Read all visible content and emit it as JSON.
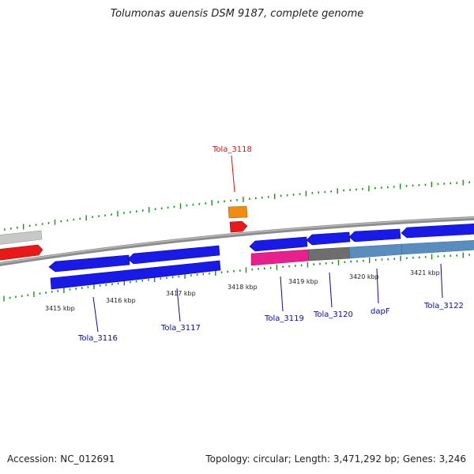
{
  "title": "Tolumonas auensis DSM 9187, complete genome",
  "accession": "Accession: NC_012691",
  "summary": "Topology: circular; Length: 3,471,292 bp; Genes: 3,246",
  "colors": {
    "backbone": "#8c8c8c",
    "gene_forward": "#1a1ae6",
    "gene_highlight": "#e61a1a",
    "gene_other": "#c8c8c8",
    "gene_orange": "#f08c14",
    "cds_pink": "#e6208c",
    "cds_gray": "#6e6e6e",
    "cds_steel": "#5a8cbe",
    "tick": "#228b22",
    "label_blue": "#0a0aa0",
    "label_red": "#c81414"
  },
  "scale": {
    "ticks": [
      "3415 kbp",
      "3416 kbp",
      "3417 kbp",
      "3418 kbp",
      "3419 kbp",
      "3420 kbp",
      "3421 kbp"
    ]
  },
  "genes": [
    {
      "name": "Tola_3116",
      "highlight": false
    },
    {
      "name": "Tola_3117",
      "highlight": false
    },
    {
      "name": "Tola_3118",
      "highlight": true
    },
    {
      "name": "Tola_3119",
      "highlight": false
    },
    {
      "name": "Tola_3120",
      "highlight": false
    },
    {
      "name": "dapF",
      "highlight": false
    },
    {
      "name": "Tola_3122",
      "highlight": false
    }
  ]
}
